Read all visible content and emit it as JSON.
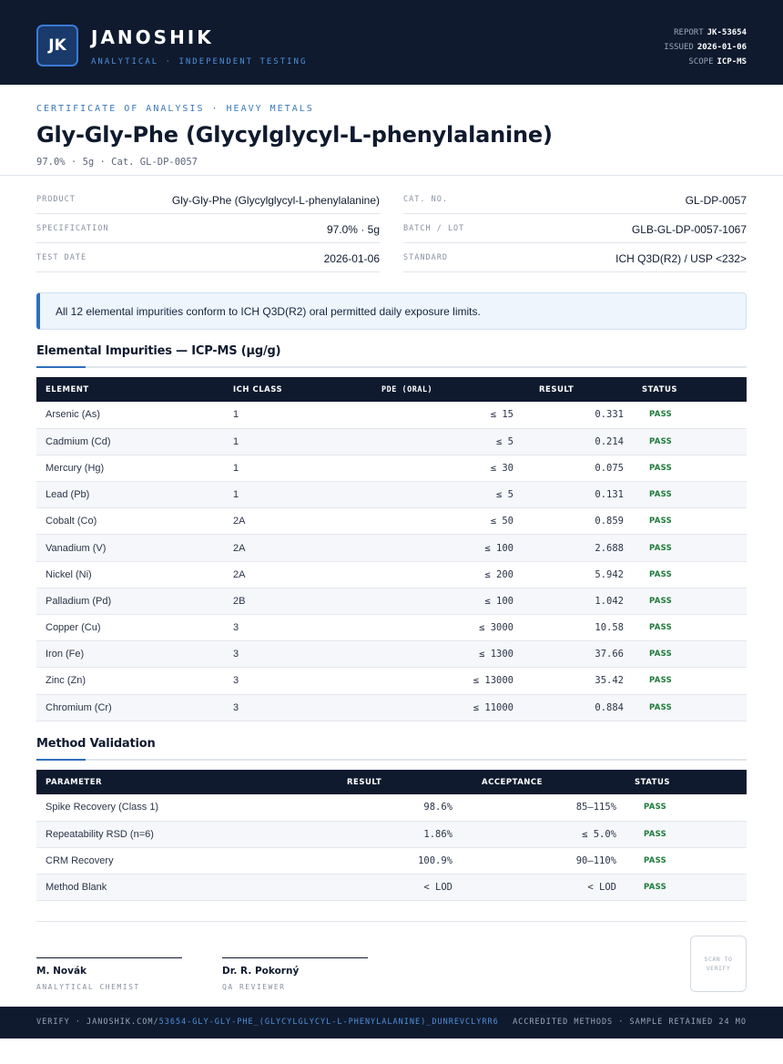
{
  "header": {
    "logo_initials": "JK",
    "brand_name": "JANOSHIK",
    "brand_tagline": "ANALYTICAL · INDEPENDENT TESTING",
    "report_label": "REPORT",
    "report_value": "JK-53654",
    "issued_label": "ISSUED",
    "issued_value": "2026-01-06",
    "scope_label": "SCOPE",
    "scope_value": "ICP-MS"
  },
  "document": {
    "eyebrow": "CERTIFICATE OF ANALYSIS · HEAVY METALS",
    "title": "Gly-Gly-Phe (Glycylglycyl-L-phenylalanine)",
    "subtitle": "97.0% · 5g  ·  Cat. GL-DP-0057"
  },
  "info": {
    "product_label": "PRODUCT",
    "product_value": "Gly-Gly-Phe (Glycylglycyl-L-phenylalanine)",
    "spec_label": "SPECIFICATION",
    "spec_value": "97.0% · 5g",
    "date_label": "TEST DATE",
    "date_value": "2026-01-06",
    "cat_label": "CAT. NO.",
    "cat_value": "GL-DP-0057",
    "batch_label": "BATCH / LOT",
    "batch_value": "GLB-GL-DP-0057-1067",
    "standard_label": "STANDARD",
    "standard_value": "ICH Q3D(R2) / USP <232>"
  },
  "notice": "All 12 elemental impurities conform to ICH Q3D(R2) oral permitted daily exposure limits.",
  "impurities": {
    "title": "Elemental Impurities — ICP-MS (µg/g)",
    "headers": [
      "ELEMENT",
      "ICH CLASS",
      "PDE (ORAL)",
      "RESULT",
      "STATUS"
    ],
    "rows": [
      {
        "element": "Arsenic (As)",
        "class": "1",
        "pde": "≤ 15",
        "result": "0.331",
        "status": "PASS"
      },
      {
        "element": "Cadmium (Cd)",
        "class": "1",
        "pde": "≤ 5",
        "result": "0.214",
        "status": "PASS"
      },
      {
        "element": "Mercury (Hg)",
        "class": "1",
        "pde": "≤ 30",
        "result": "0.075",
        "status": "PASS"
      },
      {
        "element": "Lead (Pb)",
        "class": "1",
        "pde": "≤ 5",
        "result": "0.131",
        "status": "PASS"
      },
      {
        "element": "Cobalt (Co)",
        "class": "2A",
        "pde": "≤ 50",
        "result": "0.859",
        "status": "PASS"
      },
      {
        "element": "Vanadium (V)",
        "class": "2A",
        "pde": "≤ 100",
        "result": "2.688",
        "status": "PASS"
      },
      {
        "element": "Nickel (Ni)",
        "class": "2A",
        "pde": "≤ 200",
        "result": "5.942",
        "status": "PASS"
      },
      {
        "element": "Palladium (Pd)",
        "class": "2B",
        "pde": "≤ 100",
        "result": "1.042",
        "status": "PASS"
      },
      {
        "element": "Copper (Cu)",
        "class": "3",
        "pde": "≤ 3000",
        "result": "10.58",
        "status": "PASS"
      },
      {
        "element": "Iron (Fe)",
        "class": "3",
        "pde": "≤ 1300",
        "result": "37.66",
        "status": "PASS"
      },
      {
        "element": "Zinc (Zn)",
        "class": "3",
        "pde": "≤ 13000",
        "result": "35.42",
        "status": "PASS"
      },
      {
        "element": "Chromium (Cr)",
        "class": "3",
        "pde": "≤ 11000",
        "result": "0.884",
        "status": "PASS"
      }
    ]
  },
  "validation": {
    "title": "Method Validation",
    "headers": [
      "PARAMETER",
      "RESULT",
      "ACCEPTANCE",
      "STATUS"
    ],
    "rows": [
      {
        "parameter": "Spike Recovery (Class 1)",
        "result": "98.6%",
        "acceptance": "85–115%",
        "status": "PASS"
      },
      {
        "parameter": "Repeatability RSD (n=6)",
        "result": "1.86%",
        "acceptance": "≤ 5.0%",
        "status": "PASS"
      },
      {
        "parameter": "CRM Recovery",
        "result": "100.9%",
        "acceptance": "90–110%",
        "status": "PASS"
      },
      {
        "parameter": "Method Blank",
        "result": "< LOD",
        "acceptance": "< LOD",
        "status": "PASS"
      }
    ]
  },
  "signatures": [
    {
      "name": "M. Novák",
      "role": "ANALYTICAL CHEMIST"
    },
    {
      "name": "Dr. R. Pokorný",
      "role": "QA REVIEWER"
    }
  ],
  "qr_text": "SCAN TO VERIFY",
  "footer": {
    "verify_prefix": "VERIFY · JANOSHIK.COM/",
    "verify_link": "53654-GLY-GLY-PHE_(GLYCYLGLYCYL-L-PHENYLALANINE)_DUNREVCLYRR6",
    "right": "ACCREDITED METHODS · SAMPLE RETAINED 24 MO"
  }
}
